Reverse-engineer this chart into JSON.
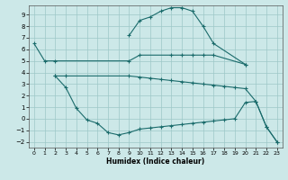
{
  "xlabel": "Humidex (Indice chaleur)",
  "background_color": "#cce8e8",
  "grid_color": "#9ec8c8",
  "line_color": "#1a6b6b",
  "xlim": [
    -0.5,
    23.5
  ],
  "ylim": [
    -2.5,
    9.8
  ],
  "xticks": [
    0,
    1,
    2,
    3,
    4,
    5,
    6,
    7,
    8,
    9,
    10,
    11,
    12,
    13,
    14,
    15,
    16,
    17,
    18,
    19,
    20,
    21,
    22,
    23
  ],
  "yticks": [
    -2,
    -1,
    0,
    1,
    2,
    3,
    4,
    5,
    6,
    7,
    8,
    9
  ],
  "line1_x": [
    0,
    1,
    2,
    9,
    10,
    13,
    14,
    15,
    16,
    17,
    20
  ],
  "line1_y": [
    6.5,
    5.0,
    5.0,
    5.0,
    5.5,
    5.5,
    5.5,
    5.5,
    5.5,
    5.5,
    4.7
  ],
  "line2_x": [
    2,
    3,
    9,
    10,
    11,
    12,
    13,
    14,
    15,
    16,
    17,
    18,
    19,
    20,
    21,
    22,
    23
  ],
  "line2_y": [
    3.7,
    3.7,
    3.7,
    3.6,
    3.5,
    3.4,
    3.3,
    3.2,
    3.1,
    3.0,
    2.9,
    2.8,
    2.7,
    2.6,
    1.5,
    -0.7,
    -2.0
  ],
  "line3_x": [
    2,
    3,
    4,
    5,
    6,
    7,
    8,
    9,
    10,
    11,
    12,
    13,
    14,
    15,
    16,
    17,
    18,
    19,
    20,
    21,
    22,
    23
  ],
  "line3_y": [
    3.7,
    2.7,
    0.9,
    -0.1,
    -0.4,
    -1.2,
    -1.4,
    -1.2,
    -0.9,
    -0.8,
    -0.7,
    -0.6,
    -0.5,
    -0.4,
    -0.3,
    -0.2,
    -0.1,
    0.0,
    1.4,
    1.5,
    -0.7,
    -2.0
  ],
  "curve_x": [
    9,
    10,
    11,
    12,
    13,
    14,
    15,
    16,
    17,
    20
  ],
  "curve_y": [
    7.2,
    8.5,
    8.8,
    9.3,
    9.6,
    9.6,
    9.3,
    8.0,
    6.5,
    4.7
  ]
}
